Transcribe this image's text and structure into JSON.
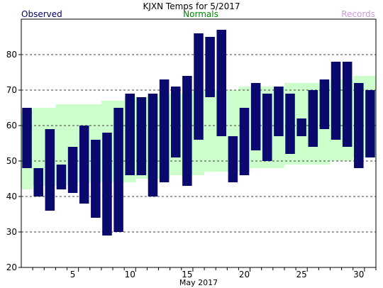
{
  "chart_data": {
    "type": "bar",
    "title": "KJXN Temps for 5/2017",
    "xlabel": "May 2017",
    "ylabel": "",
    "legend": [
      {
        "label": "Observed",
        "color": "#000066"
      },
      {
        "label": "Normals",
        "color": "#008800"
      },
      {
        "label": "Records",
        "color": "#cc99dd"
      }
    ],
    "ylim": [
      20,
      90
    ],
    "xlim": [
      0.5,
      31.5
    ],
    "yticks": [
      20,
      30,
      40,
      50,
      60,
      70,
      80
    ],
    "xticks": [
      5,
      10,
      15,
      20,
      25,
      30
    ],
    "grid": true,
    "colors": {
      "observed": "#0a0a6e",
      "normal_band": "#ccffcc",
      "grid": "#000000"
    },
    "days": [
      1,
      2,
      3,
      4,
      5,
      6,
      7,
      8,
      9,
      10,
      11,
      12,
      13,
      14,
      15,
      16,
      17,
      18,
      19,
      20,
      21,
      22,
      23,
      24,
      25,
      26,
      27,
      28,
      29,
      30,
      31
    ],
    "observed_high": [
      65,
      48,
      59,
      49,
      54,
      60,
      56,
      58,
      65,
      69,
      68,
      69,
      73,
      71,
      74,
      86,
      85,
      87,
      57,
      65,
      72,
      69,
      71,
      69,
      62,
      70,
      73,
      78,
      78,
      72,
      70
    ],
    "observed_low": [
      48,
      40,
      36,
      42,
      41,
      38,
      34,
      29,
      30,
      46,
      46,
      40,
      44,
      51,
      43,
      56,
      68,
      57,
      44,
      46,
      53,
      50,
      57,
      52,
      57,
      54,
      59,
      56,
      54,
      48,
      51
    ],
    "normal_high": [
      64,
      65,
      65,
      66,
      66,
      66,
      66,
      67,
      67,
      68,
      68,
      68,
      69,
      69,
      69,
      70,
      70,
      70,
      70,
      71,
      71,
      71,
      71,
      72,
      72,
      72,
      72,
      73,
      73,
      74,
      74
    ],
    "normal_low": [
      42,
      43,
      43,
      43,
      43,
      44,
      44,
      44,
      44,
      44,
      45,
      45,
      45,
      46,
      46,
      46,
      47,
      47,
      47,
      47,
      48,
      48,
      48,
      49,
      49,
      49,
      49,
      50,
      50,
      51,
      51
    ]
  }
}
